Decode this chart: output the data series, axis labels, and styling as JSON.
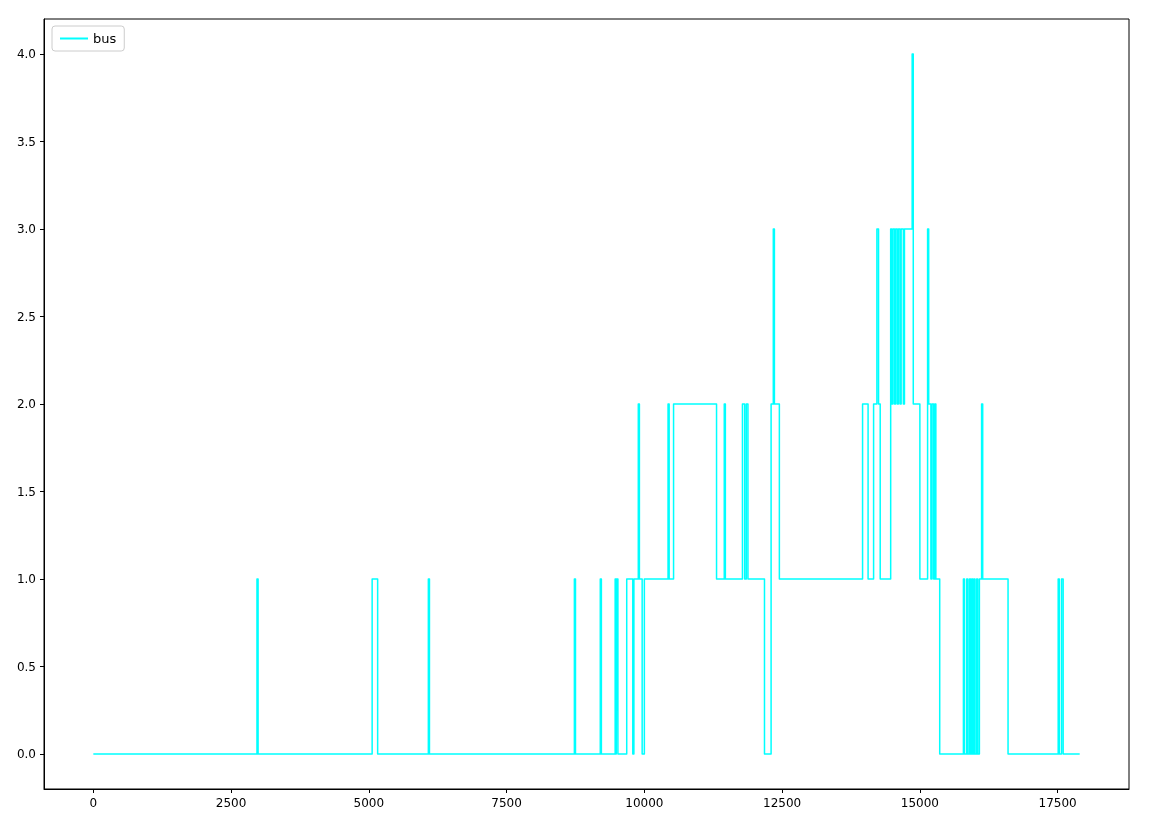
{
  "chart_data": {
    "type": "step",
    "legend": "top left",
    "grid": false,
    "marker": "none",
    "line_style": "solid",
    "xlim": [
      -895,
      18795
    ],
    "xticks": [
      0,
      2500,
      5000,
      7500,
      10000,
      12500,
      15000,
      17500
    ],
    "ylim": [
      -0.2,
      4.2
    ],
    "yticks": [
      {
        "value": 0,
        "label": "0.0"
      },
      {
        "value": 0.5,
        "label": "0.5"
      },
      {
        "value": 1,
        "label": "1.0"
      },
      {
        "value": 1.5,
        "label": "1.5"
      },
      {
        "value": 2,
        "label": "2.0"
      },
      {
        "value": 2.5,
        "label": "2.5"
      },
      {
        "value": 3,
        "label": "3.0"
      },
      {
        "value": 3.5,
        "label": "3.5"
      },
      {
        "value": 4,
        "label": "4.0"
      }
    ],
    "series": [
      {
        "name": "bus",
        "color": "#00ffff",
        "x": [
          0,
          2970,
          2990,
          5060,
          5160,
          6080,
          6100,
          8730,
          8750,
          9200,
          9220,
          9470,
          9490,
          9500,
          9520,
          9680,
          9790,
          9810,
          9890,
          9910,
          9960,
          10000,
          10430,
          10450,
          10530,
          11310,
          11450,
          11470,
          11780,
          11820,
          11850,
          11880,
          12180,
          12300,
          12340,
          12360,
          12450,
          13960,
          14060,
          14160,
          14220,
          14250,
          14280,
          14470,
          14490,
          14510,
          14540,
          14560,
          14590,
          14610,
          14640,
          14660,
          14700,
          14720,
          14860,
          14880,
          15000,
          15140,
          15160,
          15200,
          15220,
          15250,
          15270,
          15290,
          15360,
          15790,
          15810,
          15850,
          15870,
          15900,
          15920,
          15940,
          15960,
          15980,
          16000,
          16030,
          16050,
          16080,
          16120,
          16140,
          16600,
          17510,
          17530,
          17570,
          17600,
          17900
        ],
        "values": [
          0,
          1,
          0,
          1,
          0,
          1,
          0,
          1,
          0,
          1,
          0,
          1,
          0,
          1,
          0,
          1,
          0,
          1,
          2,
          1,
          0,
          1,
          2,
          1,
          2,
          1,
          2,
          1,
          2,
          1,
          2,
          1,
          0,
          2,
          3,
          2,
          1,
          2,
          1,
          2,
          3,
          2,
          1,
          3,
          2,
          3,
          2,
          3,
          2,
          3,
          2,
          3,
          2,
          3,
          4,
          2,
          1,
          3,
          2,
          1,
          2,
          1,
          2,
          1,
          0,
          1,
          0,
          1,
          0,
          1,
          0,
          1,
          0,
          1,
          0,
          1,
          0,
          1,
          2,
          1,
          0,
          1,
          0,
          1,
          0,
          0
        ]
      }
    ]
  }
}
